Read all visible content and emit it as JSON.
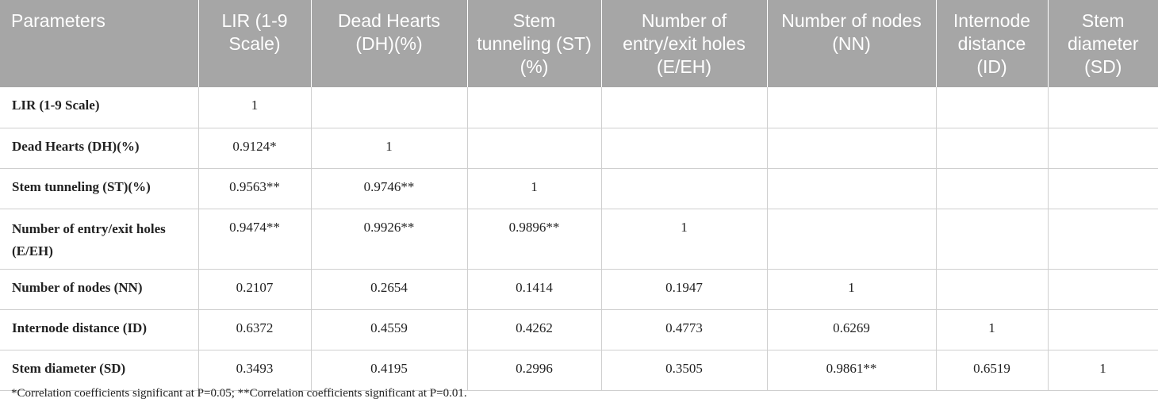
{
  "table": {
    "headers": [
      "Parameters",
      "LIR (1-9 Scale)",
      "Dead Hearts (DH)(%)",
      "Stem tunneling (ST)(%)",
      "Number of entry/exit holes (E/EH)",
      "Number of nodes (NN)",
      "Internode distance (ID)",
      "Stem diameter (SD)"
    ],
    "rows": [
      {
        "label": "LIR (1-9 Scale)",
        "cells": [
          "1",
          "",
          "",
          "",
          "",
          "",
          ""
        ]
      },
      {
        "label": "Dead Hearts (DH)(%)",
        "cells": [
          "0.9124*",
          "1",
          "",
          "",
          "",
          "",
          ""
        ]
      },
      {
        "label": "Stem tunneling (ST)(%)",
        "cells": [
          "0.9563**",
          "0.9746**",
          "1",
          "",
          "",
          "",
          ""
        ]
      },
      {
        "label": "Number of entry/exit holes (E/EH)",
        "cells": [
          "0.9474**",
          "0.9926**",
          "0.9896**",
          "1",
          "",
          "",
          ""
        ]
      },
      {
        "label": "Number of nodes (NN)",
        "cells": [
          "0.2107",
          "0.2654",
          "0.1414",
          "0.1947",
          "1",
          "",
          ""
        ]
      },
      {
        "label": "Internode distance (ID)",
        "cells": [
          "0.6372",
          "0.4559",
          "0.4262",
          "0.4773",
          "0.6269",
          "1",
          ""
        ]
      },
      {
        "label": "Stem diameter (SD)",
        "cells": [
          "0.3493",
          "0.4195",
          "0.2996",
          "0.3505",
          "0.9861**",
          "0.6519",
          "1"
        ]
      }
    ]
  },
  "footnote": "*Correlation coefficients significant at P=0.05; **Correlation coefficients significant at P=0.01.",
  "colors": {
    "header_bg": "#a6a6a6",
    "header_text": "#ffffff",
    "grid": "#cfcfcf"
  }
}
